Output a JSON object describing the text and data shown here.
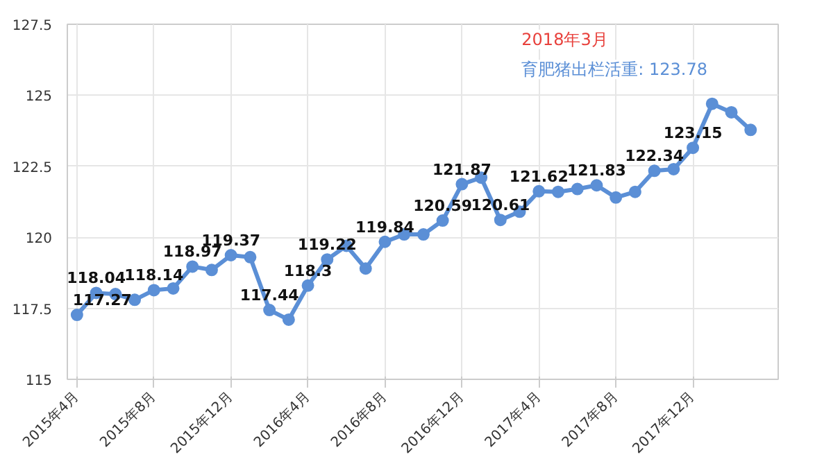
{
  "chart_data": {
    "type": "line",
    "x": [
      "2015-04",
      "2015-05",
      "2015-06",
      "2015-07",
      "2015-08",
      "2015-09",
      "2015-10",
      "2015-11",
      "2015-12",
      "2016-01",
      "2016-02",
      "2016-03",
      "2016-04",
      "2016-05",
      "2016-06",
      "2016-07",
      "2016-08",
      "2016-09",
      "2016-10",
      "2016-11",
      "2016-12",
      "2017-01",
      "2017-02",
      "2017-03",
      "2017-04",
      "2017-05",
      "2017-06",
      "2017-07",
      "2017-08",
      "2017-09",
      "2017-10",
      "2017-11",
      "2017-12",
      "2018-01",
      "2018-02",
      "2018-03"
    ],
    "series": [
      {
        "color": "#5b8fd6",
        "values": [
          117.27,
          118.04,
          118.0,
          117.8,
          118.14,
          118.2,
          118.97,
          118.85,
          119.37,
          119.3,
          117.44,
          117.1,
          118.3,
          119.22,
          119.7,
          118.9,
          119.84,
          120.1,
          120.1,
          120.59,
          121.87,
          122.1,
          120.61,
          120.9,
          121.62,
          121.6,
          121.7,
          121.83,
          121.4,
          121.6,
          122.34,
          122.4,
          123.15,
          124.7,
          124.4,
          123.78
        ],
        "value_labels": [
          "117.27",
          "118.04",
          null,
          null,
          "118.14",
          null,
          "118.97",
          null,
          "119.37",
          null,
          "117.44",
          null,
          "118.3",
          "119.22",
          null,
          null,
          "119.84",
          null,
          null,
          "120.59",
          "121.87",
          null,
          "120.61",
          null,
          "121.62",
          null,
          null,
          "121.83",
          null,
          null,
          "122.34",
          null,
          "123.15",
          null,
          null,
          null
        ]
      }
    ],
    "xlim": [
      "2015-03-16",
      "2018-04-14"
    ],
    "xticks": [
      {
        "value": "2015-04",
        "label": "2015年4月"
      },
      {
        "value": "2015-08",
        "label": "2015年8月"
      },
      {
        "value": "2015-12",
        "label": "2015年12月"
      },
      {
        "value": "2016-04",
        "label": "2016年4月"
      },
      {
        "value": "2016-08",
        "label": "2016年8月"
      },
      {
        "value": "2016-12",
        "label": "2016年12月"
      },
      {
        "value": "2017-04",
        "label": "2017年4月"
      },
      {
        "value": "2017-08",
        "label": "2017年8月"
      },
      {
        "value": "2017-12",
        "label": "2017年12月"
      }
    ],
    "ylim": [
      115,
      127.5
    ],
    "yticks": [
      115,
      117.5,
      120,
      122.5,
      125,
      127.5
    ],
    "grid": true,
    "marker": "circle",
    "line_style": "solid",
    "annotations": [
      "2018年3月",
      "育肥猪出栏活重: 123.78"
    ]
  }
}
